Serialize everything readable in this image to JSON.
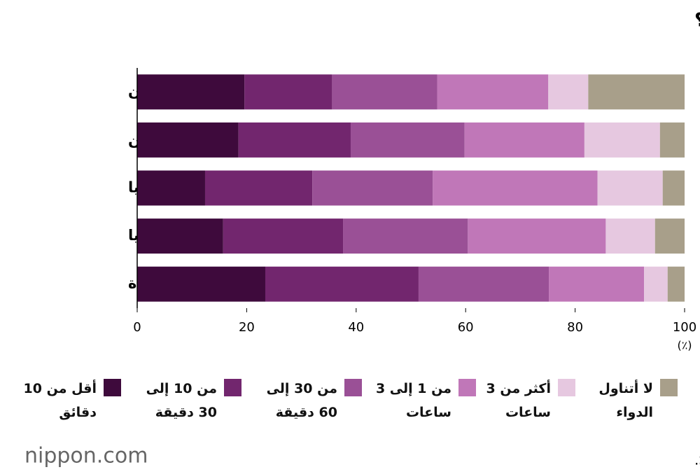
{
  "chart_data": {
    "type": "stacked-barh",
    "title": "متى يجب أن تتناول الدواء بعد الشعور بالصداع؟",
    "categories": [
      "اليابان",
      "الصين",
      "ألمانيا",
      "بريطانيا",
      "الولايات المتحدة"
    ],
    "series": [
      {
        "name": "أقل من 10 دقائق",
        "color": "#3e0a3c",
        "values": [
          19.6,
          18.5,
          12.4,
          15.7,
          23.4
        ]
      },
      {
        "name": "من 10 إلى 30 دقيقة",
        "color": "#72266e",
        "values": [
          16.0,
          20.5,
          19.6,
          21.9,
          28.0
        ]
      },
      {
        "name": "من 30 إلى 60 دقيقة",
        "color": "#9a5096",
        "values": [
          19.2,
          20.8,
          22.0,
          22.8,
          23.8
        ]
      },
      {
        "name": "من 1 إلى 3 ساعات",
        "color": "#c077b8",
        "values": [
          20.3,
          21.9,
          30.1,
          25.2,
          17.4
        ]
      },
      {
        "name": "أكثر من 3 ساعات",
        "color": "#e6c8e0",
        "values": [
          7.3,
          13.8,
          11.9,
          9.0,
          4.3
        ]
      },
      {
        "name": "لا أتناول الدواء",
        "color": "#a89f8a",
        "values": [
          17.6,
          4.5,
          4.0,
          5.4,
          3.1
        ]
      }
    ],
    "xlim": [
      0,
      100
    ],
    "xticks": [
      0,
      20,
      40,
      60,
      80,
      100
    ],
    "xlabel": "(٪)",
    "source": "تم إعداد البيانات بواسطة Nippon.com بناءً على بيانات من SSP.",
    "logo": "nippon.com"
  }
}
